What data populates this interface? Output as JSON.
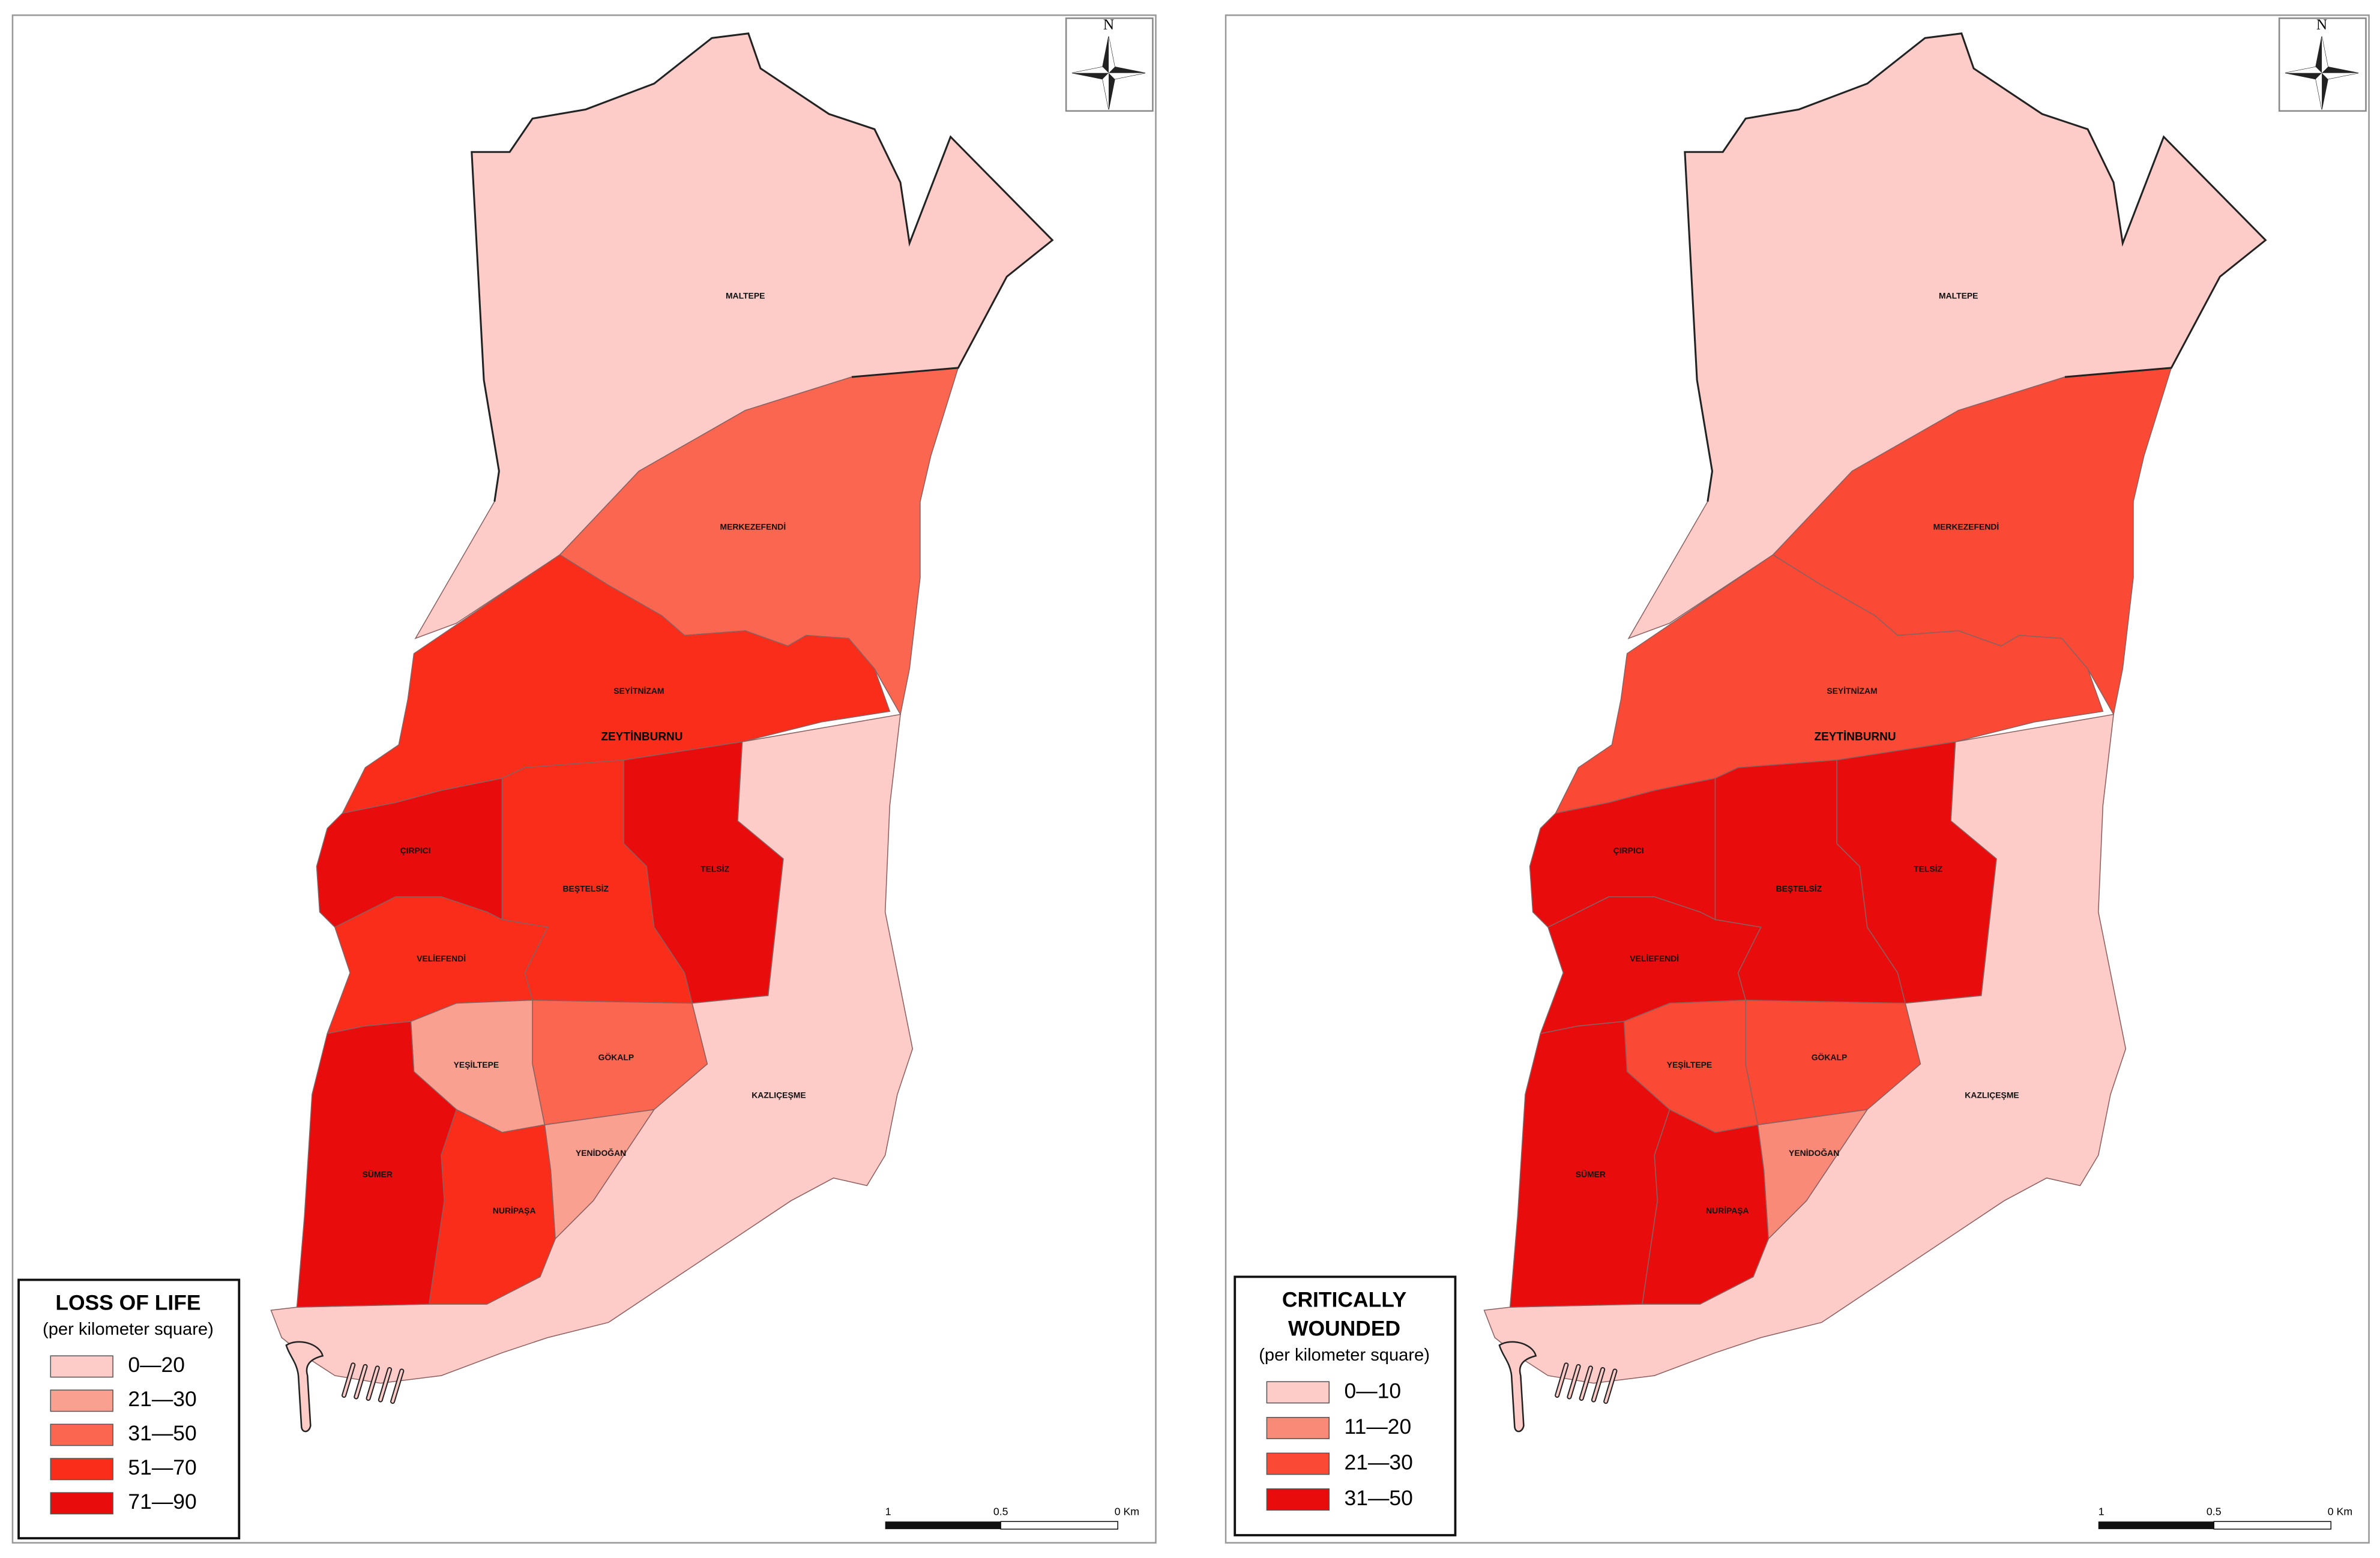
{
  "maps": [
    {
      "title_lines": [
        "LOSS OF LIFE"
      ],
      "subtitle": "(per kilometer square)",
      "legend": [
        {
          "label": "0—20",
          "color": "#fdcbc8"
        },
        {
          "label": "21—30",
          "color": "#f9a090"
        },
        {
          "label": "31—50",
          "color": "#fb6650"
        },
        {
          "label": "51—70",
          "color": "#fa2d1a"
        },
        {
          "label": "71—90",
          "color": "#e80c0c"
        }
      ],
      "districts": [
        {
          "name": "MALTEPE",
          "color": "#fdcbc8"
        },
        {
          "name": "MERKEZEFENDİ",
          "color": "#fb6650"
        },
        {
          "name": "SEYİTNİZAM",
          "color": "#fa2d1a"
        },
        {
          "name": "ÇIRPICI",
          "color": "#e80c0c"
        },
        {
          "name": "BEŞTELSİZ",
          "color": "#fa2d1a"
        },
        {
          "name": "TELSİZ",
          "color": "#e80c0c"
        },
        {
          "name": "VELİEFENDİ",
          "color": "#fa2d1a"
        },
        {
          "name": "YEŞİLTEPE",
          "color": "#f9a090"
        },
        {
          "name": "GÖKALP",
          "color": "#fb6650"
        },
        {
          "name": "YENİDOĞAN",
          "color": "#f9a090"
        },
        {
          "name": "KAZLIÇEŞME",
          "color": "#fdcbc8"
        },
        {
          "name": "SÜMER",
          "color": "#e80c0c"
        },
        {
          "name": "NURİPAŞA",
          "color": "#fa2d1a"
        }
      ],
      "city_label": "ZEYTİNBURNU",
      "north": "N",
      "scale_labels": [
        "1",
        "0.5",
        "0 Km"
      ]
    },
    {
      "title_lines": [
        "CRITICALLY",
        "WOUNDED"
      ],
      "subtitle": "(per kilometer square)",
      "legend": [
        {
          "label": "0—10",
          "color": "#fdcbc8"
        },
        {
          "label": "11—20",
          "color": "#f98a78"
        },
        {
          "label": "21—30",
          "color": "#fa4a35"
        },
        {
          "label": "31—50",
          "color": "#e80c0c"
        }
      ],
      "districts": [
        {
          "name": "MALTEPE",
          "color": "#fdcbc8"
        },
        {
          "name": "MERKEZEFENDİ",
          "color": "#fa4a35"
        },
        {
          "name": "SEYİTNİZAM",
          "color": "#fa4a35"
        },
        {
          "name": "ÇIRPICI",
          "color": "#e80c0c"
        },
        {
          "name": "BEŞTELSİZ",
          "color": "#e80c0c"
        },
        {
          "name": "TELSİZ",
          "color": "#e80c0c"
        },
        {
          "name": "VELİEFENDİ",
          "color": "#e80c0c"
        },
        {
          "name": "YEŞİLTEPE",
          "color": "#fa4a35"
        },
        {
          "name": "GÖKALP",
          "color": "#fa4a35"
        },
        {
          "name": "YENİDOĞAN",
          "color": "#f98a78"
        },
        {
          "name": "KAZLIÇEŞME",
          "color": "#fdcbc8"
        },
        {
          "name": "SÜMER",
          "color": "#e80c0c"
        },
        {
          "name": "NURİPAŞA",
          "color": "#e80c0c"
        }
      ],
      "city_label": "ZEYTİNBURNU",
      "north": "N",
      "scale_labels": [
        "1",
        "0.5",
        "0 Km"
      ]
    }
  ]
}
